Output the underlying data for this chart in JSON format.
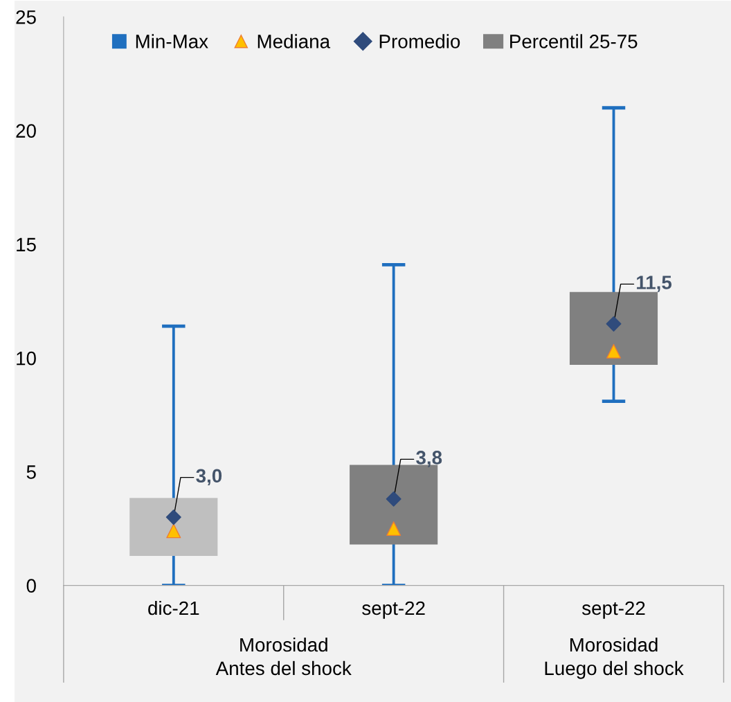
{
  "chart_data": {
    "type": "bar",
    "categories": [
      "dic-21",
      "sept-22",
      "sept-22"
    ],
    "ylim": [
      0,
      25
    ],
    "yticks": [
      0,
      5,
      10,
      15,
      20,
      25
    ],
    "grid": false,
    "legend": "top",
    "series": [
      {
        "name": "Min-Max",
        "type": "bar",
        "color": "#1f6fbf",
        "base": [
          0,
          0,
          8.1
        ],
        "values": [
          11.4,
          14.1,
          12.9
        ]
      },
      {
        "name": "Mediana",
        "type": "scatter",
        "marker": "triangle",
        "color": "#ffc000",
        "values": [
          2.4,
          2.5,
          10.3
        ]
      },
      {
        "name": "Promedio",
        "type": "scatter",
        "marker": "diamond",
        "color": "#2f4b7c",
        "values": [
          3.0,
          3.8,
          11.5
        ],
        "value_labels": [
          "3,0",
          "3,8",
          "11,5"
        ]
      },
      {
        "name": "Percentil 25-75",
        "colors": [
          "#bfbfbf",
          "#808080",
          "#808080"
        ],
        "base": [
          1.3,
          1.8,
          9.7
        ],
        "values": [
          2.55,
          3.5,
          3.2
        ]
      }
    ],
    "annotations": [
      "Morosidad\nAntes del shock",
      "Morosidad\nLuego del shock"
    ]
  }
}
